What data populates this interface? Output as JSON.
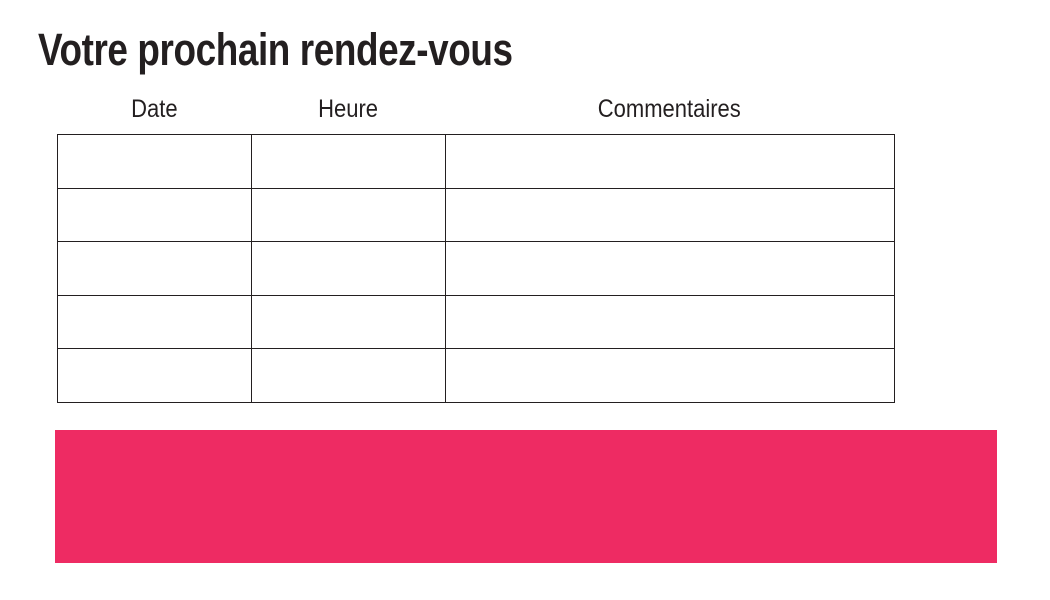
{
  "page": {
    "title": "Votre prochain rendez-vous"
  },
  "table": {
    "headers": [
      "Date",
      "Heure",
      "Commentaires"
    ],
    "rows": [
      [
        "",
        "",
        ""
      ],
      [
        "",
        "",
        ""
      ],
      [
        "",
        "",
        ""
      ],
      [
        "",
        "",
        ""
      ],
      [
        "",
        "",
        ""
      ]
    ]
  },
  "banner": {
    "color": "#ee2b63"
  }
}
